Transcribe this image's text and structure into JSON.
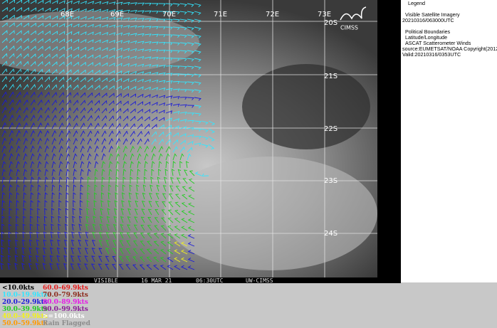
{
  "map": {
    "lon_labels": [
      "68E",
      "69E",
      "70E",
      "71E",
      "72E",
      "73E"
    ],
    "lat_labels": [
      "20S",
      "21S",
      "22S",
      "23S",
      "24S"
    ],
    "logo": "CIMSS",
    "footer": [
      "VISIBLE",
      "16 MAR 21",
      "06:30UTC",
      "UW-CIMSS"
    ]
  },
  "legend_panel": {
    "title": "Legend",
    "items": [
      "Visible Satellite Imagery",
      "20210316/063000UTC",
      "Political Boundaries",
      "Latitude/Longitude",
      "ASCAT Scatterometer Winds",
      "source:EUMETSAT/NOAA  Copyright(2012)",
      "Valid:20210316/0353UTC"
    ]
  },
  "speed_legend": [
    {
      "label": "<10.0kts",
      "color": "#000000"
    },
    {
      "label": "10.0–19.9kts",
      "color": "#33e6ff"
    },
    {
      "label": "20.0–29.9kts",
      "color": "#1a1ad9"
    },
    {
      "label": "30.0–39.9kts",
      "color": "#22cc22"
    },
    {
      "label": "40.0–49.9kts",
      "color": "#f2f21a"
    },
    {
      "label": "50.0–59.9kts",
      "color": "#ff9900"
    },
    {
      "label": "60.0–69.9kts",
      "color": "#e61a1a"
    },
    {
      "label": "70.0–79.9kts",
      "color": "#8b2a1a"
    },
    {
      "label": "80.0–89.9kts",
      "color": "#e61ae6"
    },
    {
      "label": "90.0–99.9kts",
      "color": "#8c1a99"
    },
    {
      "label": ">=100.0kts",
      "color": "#ffffff"
    },
    {
      "label": "Rain Flagged",
      "color": "#8c8c8c"
    }
  ]
}
